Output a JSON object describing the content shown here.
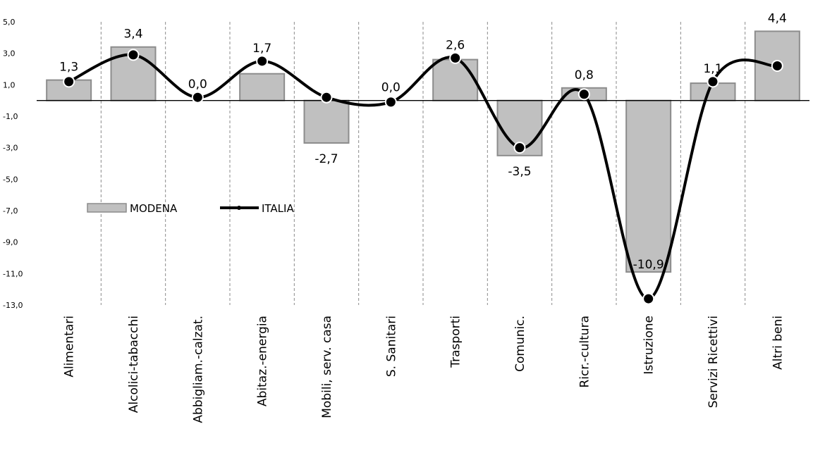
{
  "chart_data": {
    "type": "bar",
    "categories": [
      "Alimentari",
      "Alcolici-tabacchi",
      "Abbigliam.-calzat.",
      "Abitaz.-energia",
      "Mobili, serv. casa",
      "S. Sanitari",
      "Trasporti",
      "Comunic.",
      "Ricr.-cultura",
      "Istruzione",
      "Servizi Ricettivi",
      "Altri beni"
    ],
    "series": [
      {
        "name": "MODENA",
        "type": "bar",
        "values": [
          1.3,
          3.4,
          0.0,
          1.7,
          -2.7,
          0.0,
          2.6,
          -3.5,
          0.8,
          -10.9,
          1.1,
          4.4
        ],
        "labels": [
          "1,3",
          "3,4",
          "0,0",
          "1,7",
          "-2,7",
          "0,0",
          "2,6",
          "-3,5",
          "0,8",
          "-10,9",
          "1,1",
          "4,4"
        ],
        "color": "#c0c0c0"
      },
      {
        "name": "ITALIA",
        "type": "line",
        "smooth": true,
        "values": [
          1.2,
          2.9,
          0.2,
          2.5,
          0.2,
          -0.1,
          2.7,
          -3.0,
          0.4,
          -12.6,
          1.2,
          2.2
        ],
        "color": "#000000"
      }
    ],
    "yticks": [
      "5,0",
      "3,0",
      "1,0",
      "-1,0",
      "-3,0",
      "-5,0",
      "-7,0",
      "-9,0",
      "-11,0",
      "-13,0"
    ],
    "ylim": [
      -13,
      5
    ],
    "grid": "vertical dashed separators",
    "legend": "middle-left"
  }
}
